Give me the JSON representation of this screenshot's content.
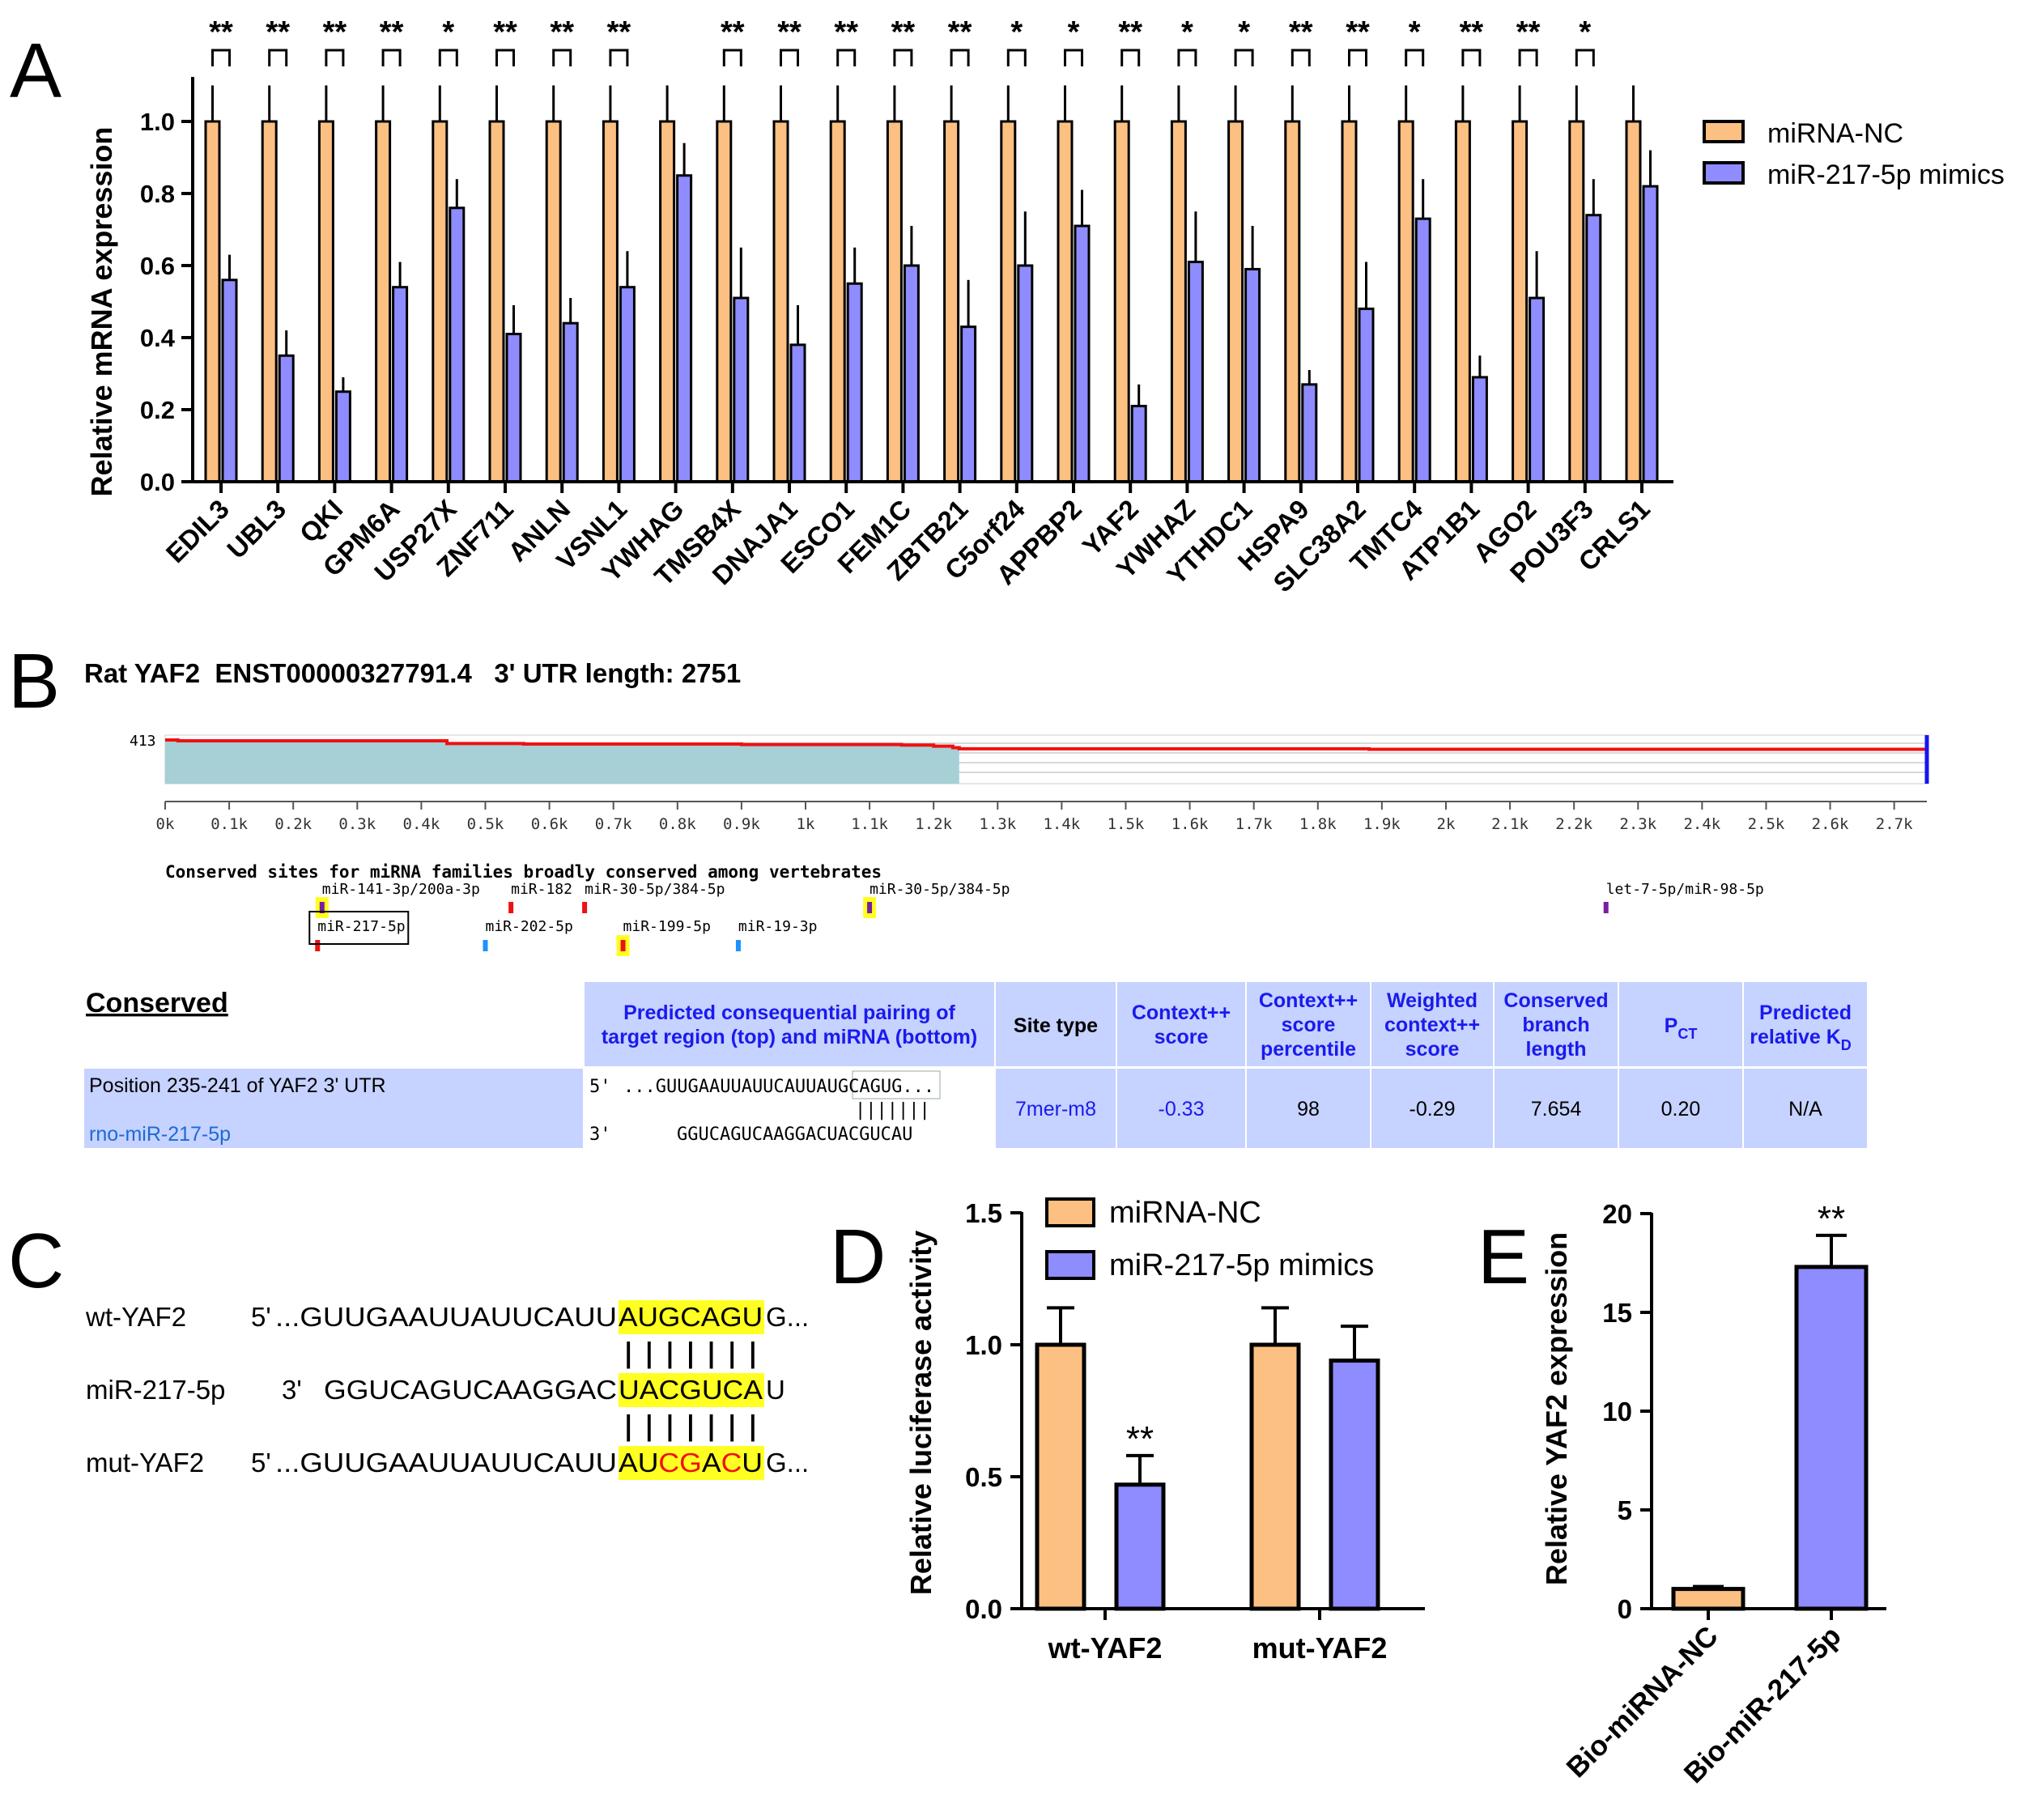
{
  "colors": {
    "nc": "#fcc082",
    "mimic": "#8e8cff",
    "axis": "#000000",
    "red": "#ee1111",
    "yellow": "#ffff22",
    "teal": "#a6cfd6",
    "tableBlue": "#c6d2ff",
    "linkBlue": "#1c6bd4",
    "headBlue": "#1a1aee"
  },
  "panelA": {
    "letter": "A",
    "ylabel": "Relative mRNA expression",
    "legend": [
      "miRNA-NC",
      "miR-217-5p mimics"
    ],
    "yticks": [
      "0.0",
      "0.2",
      "0.4",
      "0.6",
      "0.8",
      "1.0"
    ]
  },
  "panelB": {
    "letter": "B",
    "header": "Rat YAF2  ENST00000327791.4   3' UTR length: 2751",
    "track_label": "413",
    "xticks": [
      "0k",
      "0.1k",
      "0.2k",
      "0.3k",
      "0.4k",
      "0.5k",
      "0.6k",
      "0.7k",
      "0.8k",
      "0.9k",
      "1k",
      "1.1k",
      "1.2k",
      "1.3k",
      "1.4k",
      "1.5k",
      "1.6k",
      "1.7k",
      "1.8k",
      "1.9k",
      "2k",
      "2.1k",
      "2.2k",
      "2.3k",
      "2.4k",
      "2.5k",
      "2.6k",
      "2.7k"
    ],
    "sites_title": "Conserved sites for miRNA families broadly conserved among vertebrates",
    "sites": [
      {
        "label": "miR-141-3p/200a-3p",
        "pos": 245,
        "row": 1,
        "color": "#7a1ea1",
        "hl": true
      },
      {
        "label": "miR-182",
        "pos": 540,
        "row": 1,
        "color": "#ee1111",
        "hl": false
      },
      {
        "label": "miR-30-5p/384-5p",
        "pos": 655,
        "row": 1,
        "color": "#ee1111",
        "hl": false
      },
      {
        "label": "miR-30-5p/384-5p",
        "pos": 1100,
        "row": 1,
        "color": "#7a1ea1",
        "hl": true
      },
      {
        "label": "let-7-5p/miR-98-5p",
        "pos": 2250,
        "row": 1,
        "color": "#7a1ea1",
        "hl": false
      },
      {
        "label": "miR-217-5p",
        "pos": 238,
        "row": 2,
        "color": "#ee1111",
        "hl": false,
        "boxed": true
      },
      {
        "label": "miR-202-5p",
        "pos": 500,
        "row": 2,
        "color": "#1e90ff",
        "hl": false
      },
      {
        "label": "miR-199-5p",
        "pos": 715,
        "row": 2,
        "color": "#ee1111",
        "hl": true
      },
      {
        "label": "miR-19-3p",
        "pos": 895,
        "row": 2,
        "color": "#1e90ff",
        "hl": false
      }
    ],
    "table": {
      "title": "Conserved",
      "headers": [
        "Predicted consequential pairing of target region (top) and miRNA (bottom)",
        "Site type",
        "Context++ score",
        "Context++ score percentile",
        "Weighted context++ score",
        "Conserved branch length",
        "P",
        "Predicted relative K"
      ],
      "pct_sub": "CT",
      "kd_sub": "D",
      "row": {
        "position": "Position 235-241 of YAF2 3' UTR",
        "mirna": "rno-miR-217-5p",
        "top_prefix": "5'",
        "top_seq_a": "...GUUGAAUUAUUCAUU",
        "top_seq_b": "AUGCAGUG...",
        "pipes": "|||||||",
        "bot_prefix": "3'",
        "bot_seq_a": "GGUCAGUCAAGGACU",
        "bot_seq_b": "ACGUCAU",
        "site_type": "7mer-m8",
        "context": "-0.33",
        "percentile": "98",
        "weighted": "-0.29",
        "branch": "7.654",
        "pct": "0.20",
        "kd": "N/A"
      }
    }
  },
  "panelC": {
    "letter": "C",
    "rows": [
      {
        "name": "wt-YAF2",
        "prefix": "5'",
        "pre": "...GUUGAAUUAUUCAUU",
        "site": "AUGCAGU",
        "post": "G..."
      },
      {
        "name": "miR-217-5p",
        "prefix": "3'",
        "pre": "GGUCAGUCAAGGAC",
        "site": "UACGUCA",
        "post": "U"
      },
      {
        "name": "mut-YAF2",
        "prefix": "5'",
        "pre": "...GUUGAAUUAUUCAUU",
        "site": "AUCGACU",
        "post": "G..."
      }
    ],
    "pipes": "| | | | | | |"
  },
  "panelD": {
    "letter": "D",
    "ylabel": "Relative luciferase activity",
    "legend": [
      "miRNA-NC",
      "miR-217-5p mimics"
    ],
    "yticks": [
      "0.0",
      "0.5",
      "1.0",
      "1.5"
    ],
    "sig": "**"
  },
  "panelE": {
    "letter": "E",
    "ylabel": "Relative YAF2 expression",
    "yticks": [
      "0",
      "5",
      "10",
      "15",
      "20"
    ],
    "sig": "**"
  },
  "chart_data": [
    {
      "type": "bar",
      "panel": "A",
      "categories": [
        "EDIL3",
        "UBL3",
        "QKI",
        "GPM6A",
        "USP27X",
        "ZNF711",
        "ANLN",
        "VSNL1",
        "YWHAG",
        "TMSB4X",
        "DNAJA1",
        "ESCO1",
        "FEM1C",
        "ZBTB21",
        "C5orf24",
        "APPBP2",
        "YAF2",
        "YWHAZ",
        "YTHDC1",
        "HSPA9",
        "SLC38A2",
        "TMTC4",
        "ATP1B1",
        "AGO2",
        "POU3F3",
        "CRLS1"
      ],
      "series": [
        {
          "name": "miRNA-NC",
          "values": [
            1,
            1,
            1,
            1,
            1,
            1,
            1,
            1,
            1,
            1,
            1,
            1,
            1,
            1,
            1,
            1,
            1,
            1,
            1,
            1,
            1,
            1,
            1,
            1,
            1,
            1
          ],
          "errors": [
            0.1,
            0.1,
            0.1,
            0.1,
            0.1,
            0.1,
            0.1,
            0.1,
            0.1,
            0.1,
            0.1,
            0.1,
            0.1,
            0.1,
            0.1,
            0.1,
            0.1,
            0.1,
            0.1,
            0.1,
            0.1,
            0.1,
            0.1,
            0.1,
            0.1,
            0.1
          ]
        },
        {
          "name": "miR-217-5p mimics",
          "values": [
            0.56,
            0.35,
            0.25,
            0.54,
            0.76,
            0.41,
            0.44,
            0.54,
            0.85,
            0.51,
            0.38,
            0.55,
            0.6,
            0.43,
            0.6,
            0.71,
            0.21,
            0.61,
            0.59,
            0.27,
            0.48,
            0.73,
            0.29,
            0.51,
            0.74,
            0.82
          ],
          "errors": [
            0.07,
            0.07,
            0.04,
            0.07,
            0.08,
            0.08,
            0.07,
            0.1,
            0.09,
            0.14,
            0.11,
            0.1,
            0.11,
            0.13,
            0.15,
            0.1,
            0.06,
            0.14,
            0.12,
            0.04,
            0.13,
            0.11,
            0.06,
            0.13,
            0.1,
            0.1
          ]
        }
      ],
      "significance": [
        "**",
        "**",
        "**",
        "**",
        "*",
        "**",
        "**",
        "**",
        "",
        "**",
        "**",
        "**",
        "**",
        "**",
        "*",
        "*",
        "**",
        "*",
        "*",
        "**",
        "**",
        "*",
        "**",
        "**",
        "*",
        ""
      ],
      "ylim": [
        0,
        1.1
      ],
      "ylabel": "Relative mRNA expression"
    },
    {
      "type": "line",
      "panel": "B",
      "note_unit": "UTR position",
      "x": [
        0,
        20,
        430,
        440,
        560,
        900,
        1150,
        1200,
        1230,
        1240,
        1880,
        2751
      ],
      "y": [
        413,
        405,
        405,
        380,
        375,
        370,
        365,
        355,
        340,
        330,
        325,
        325
      ],
      "xlim": [
        0,
        2751
      ]
    },
    {
      "type": "bar",
      "panel": "D",
      "categories": [
        "wt-YAF2",
        "mut-YAF2"
      ],
      "series": [
        {
          "name": "miRNA-NC",
          "values": [
            1.0,
            1.0
          ],
          "errors": [
            0.14,
            0.14
          ]
        },
        {
          "name": "miR-217-5p mimics",
          "values": [
            0.47,
            0.94
          ],
          "errors": [
            0.11,
            0.13
          ]
        }
      ],
      "significance": [
        "**",
        ""
      ],
      "ylim": [
        0,
        1.5
      ],
      "ylabel": "Relative luciferase activity"
    },
    {
      "type": "bar",
      "panel": "E",
      "categories": [
        "Bio-miRNA-NC",
        "Bio-miR-217-5p"
      ],
      "values": [
        1.0,
        17.3
      ],
      "errors": [
        0.12,
        1.6
      ],
      "significance": [
        "",
        "**"
      ],
      "ylim": [
        0,
        20
      ],
      "ylabel": "Relative YAF2 expression"
    }
  ]
}
